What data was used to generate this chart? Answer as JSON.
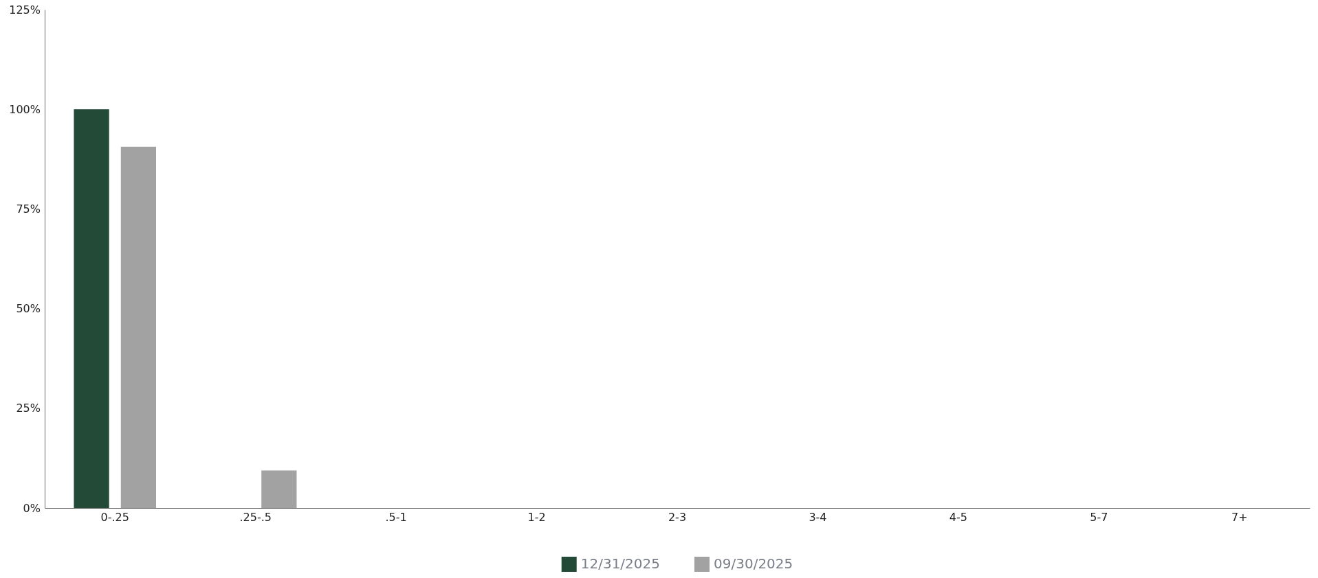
{
  "chart_data": {
    "type": "bar",
    "categories": [
      "0-.25",
      ".25-.5",
      ".5-1",
      "1-2",
      "2-3",
      "3-4",
      "4-5",
      "5-7",
      "7+"
    ],
    "series": [
      {
        "name": "12/31/2025",
        "color": "#224a37",
        "values": [
          100,
          0,
          0,
          0,
          0,
          0,
          0,
          0,
          0
        ]
      },
      {
        "name": "09/30/2025",
        "color": "#a2a2a2",
        "values": [
          90.6,
          9.4,
          0,
          0,
          0,
          0,
          0,
          0,
          0
        ]
      }
    ],
    "ylim": [
      0,
      125
    ],
    "yticks": [
      {
        "value": 0,
        "label": "0%"
      },
      {
        "value": 25,
        "label": "25%"
      },
      {
        "value": 50,
        "label": "50%"
      },
      {
        "value": 75,
        "label": "75%"
      },
      {
        "value": 100,
        "label": "100%"
      },
      {
        "value": 125,
        "label": "125%"
      }
    ],
    "grid": false,
    "legend": "bottom"
  }
}
